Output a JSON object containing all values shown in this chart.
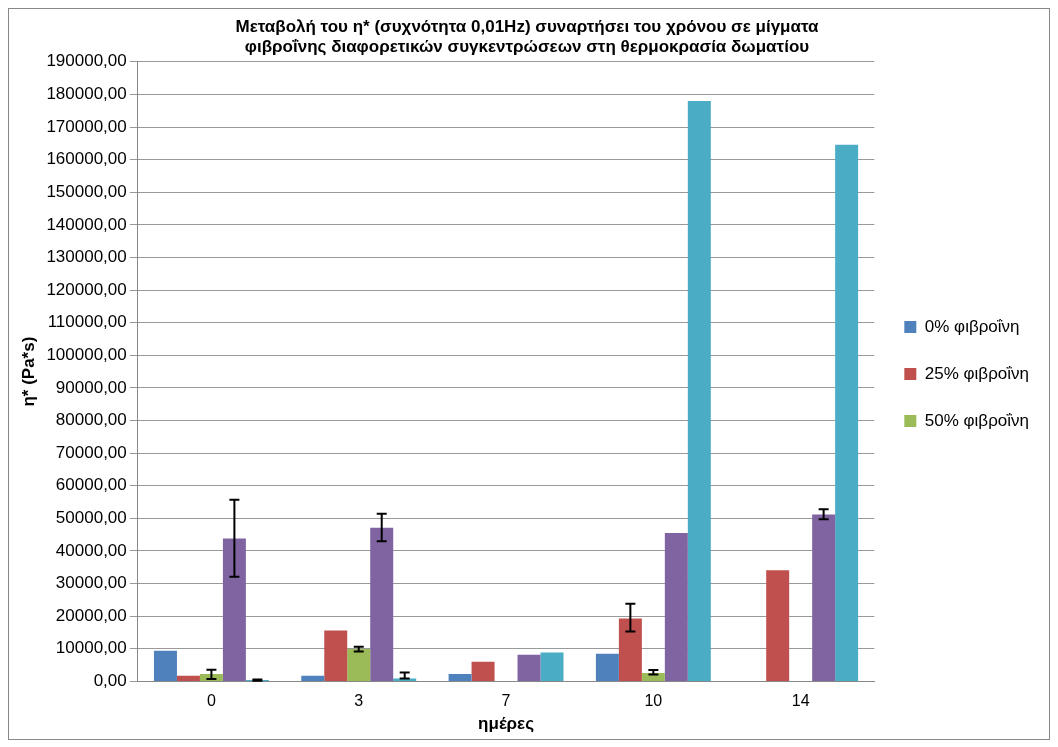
{
  "chart_data": {
    "type": "bar",
    "title": "Μεταβολή του η* (συχνότητα 0,01Hz) συναρτήσει του χρόνου σε μίγματα\nφιβροΐνης διαφορετικών συγκεντρώσεων στη θερμοκρασία δωματίου",
    "xlabel": "ημέρες",
    "ylabel": "η* (Pa*s)",
    "categories": [
      "0",
      "3",
      "7",
      "10",
      "14"
    ],
    "series": [
      {
        "name": "0% φιβροΐνη",
        "color": "#4f81bd",
        "values": [
          9400,
          1700,
          2300,
          8500,
          null
        ]
      },
      {
        "name": "25% φιβροΐνη",
        "color": "#c0504d",
        "values": [
          1700,
          15600,
          6000,
          19300,
          34100
        ],
        "errors": [
          null,
          null,
          null,
          [
            15300,
            23800
          ],
          null
        ]
      },
      {
        "name": "50% φιβροΐνη",
        "color": "#9bbb59",
        "values": [
          2300,
          9900,
          null,
          2600,
          null
        ],
        "errors": [
          [
            700,
            3600
          ],
          [
            9200,
            10600
          ],
          null,
          [
            2100,
            3500
          ],
          null
        ]
      },
      {
        "color": "#8064a2",
        "values": [
          43800,
          47100,
          8200,
          45500,
          51200
        ],
        "errors": [
          [
            32100,
            55700
          ],
          [
            43000,
            51400
          ],
          null,
          null,
          [
            49700,
            52800
          ]
        ]
      },
      {
        "color": "#4bacc6",
        "values": [
          400,
          900,
          8900,
          178000,
          164600
        ],
        "errors": [
          [
            200,
            600
          ],
          [
            900,
            2700
          ],
          null,
          null,
          null
        ]
      }
    ],
    "ylim": [
      0,
      190000
    ],
    "yticks": [
      {
        "value": 0,
        "label": "0,00"
      },
      {
        "value": 10000,
        "label": "10000,00"
      },
      {
        "value": 20000,
        "label": "20000,00"
      },
      {
        "value": 30000,
        "label": "30000,00"
      },
      {
        "value": 40000,
        "label": "40000,00"
      },
      {
        "value": 50000,
        "label": "50000,00"
      },
      {
        "value": 60000,
        "label": "60000,00"
      },
      {
        "value": 70000,
        "label": "70000,00"
      },
      {
        "value": 80000,
        "label": "80000,00"
      },
      {
        "value": 90000,
        "label": "90000,00"
      },
      {
        "value": 100000,
        "label": "100000,00"
      },
      {
        "value": 110000,
        "label": "110000,00"
      },
      {
        "value": 120000,
        "label": "120000,00"
      },
      {
        "value": 130000,
        "label": "130000,00"
      },
      {
        "value": 140000,
        "label": "140000,00"
      },
      {
        "value": 150000,
        "label": "150000,00"
      },
      {
        "value": 160000,
        "label": "160000,00"
      },
      {
        "value": 170000,
        "label": "170000,00"
      },
      {
        "value": 180000,
        "label": "180000,00"
      },
      {
        "value": 190000,
        "label": "190000,00"
      }
    ],
    "grid": "y",
    "legend": "right"
  }
}
